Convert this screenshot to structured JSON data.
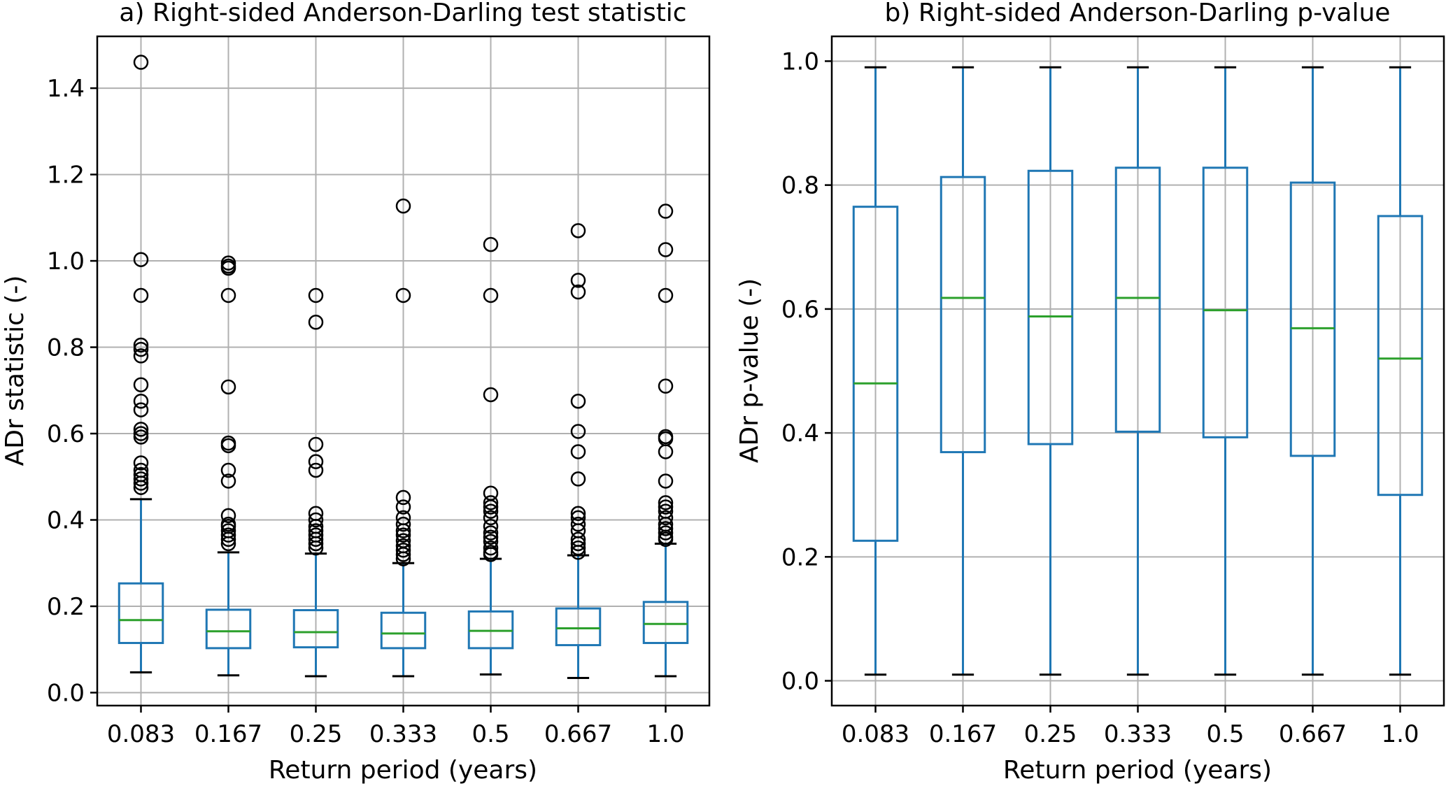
{
  "chart_data": [
    {
      "type": "box",
      "title": "a) Right-sided Anderson-Darling test statistic",
      "xlabel": "Return period (years)",
      "ylabel": "ADr statistic (-)",
      "ylim": [
        -0.03,
        1.52
      ],
      "yticks": [
        "0.0",
        "0.2",
        "0.4",
        "0.6",
        "0.8",
        "1.0",
        "1.2",
        "1.4"
      ],
      "grid": true,
      "colors": {
        "box": "#1f77b4",
        "median": "#2ca02c",
        "whisker_cap": "#000000",
        "outlier": "#000000"
      },
      "categories": [
        "0.083",
        "0.167",
        "0.25",
        "0.333",
        "0.5",
        "0.667",
        "1.0"
      ],
      "boxes": [
        {
          "whisker_low": 0.047,
          "q1": 0.115,
          "median": 0.168,
          "q3": 0.253,
          "whisker_high": 0.448,
          "outliers": [
            1.46,
            1.003,
            0.92,
            0.805,
            0.795,
            0.78,
            0.713,
            0.675,
            0.655,
            0.61,
            0.6,
            0.592,
            0.532,
            0.515,
            0.505,
            0.495,
            0.485,
            0.475
          ]
        },
        {
          "whisker_low": 0.04,
          "q1": 0.103,
          "median": 0.142,
          "q3": 0.192,
          "whisker_high": 0.325,
          "outliers": [
            0.995,
            0.988,
            0.983,
            0.92,
            0.708,
            0.578,
            0.572,
            0.515,
            0.49,
            0.41,
            0.39,
            0.385,
            0.375,
            0.365,
            0.355,
            0.345
          ]
        },
        {
          "whisker_low": 0.038,
          "q1": 0.105,
          "median": 0.14,
          "q3": 0.191,
          "whisker_high": 0.322,
          "outliers": [
            0.92,
            0.858,
            0.575,
            0.535,
            0.515,
            0.415,
            0.4,
            0.385,
            0.375,
            0.365,
            0.355,
            0.345,
            0.335
          ]
        },
        {
          "whisker_low": 0.038,
          "q1": 0.103,
          "median": 0.137,
          "q3": 0.185,
          "whisker_high": 0.3,
          "outliers": [
            1.127,
            0.92,
            0.452,
            0.43,
            0.405,
            0.39,
            0.375,
            0.365,
            0.352,
            0.34,
            0.33,
            0.32,
            0.31
          ]
        },
        {
          "whisker_low": 0.042,
          "q1": 0.103,
          "median": 0.143,
          "q3": 0.188,
          "whisker_high": 0.31,
          "outliers": [
            1.038,
            0.92,
            0.69,
            0.462,
            0.44,
            0.43,
            0.42,
            0.405,
            0.385,
            0.37,
            0.36,
            0.35,
            0.335,
            0.325,
            0.32
          ]
        },
        {
          "whisker_low": 0.034,
          "q1": 0.11,
          "median": 0.149,
          "q3": 0.195,
          "whisker_high": 0.318,
          "outliers": [
            1.07,
            0.955,
            0.928,
            0.675,
            0.605,
            0.558,
            0.495,
            0.415,
            0.405,
            0.39,
            0.375,
            0.355,
            0.345,
            0.335,
            0.325
          ]
        },
        {
          "whisker_low": 0.038,
          "q1": 0.115,
          "median": 0.159,
          "q3": 0.21,
          "whisker_high": 0.345,
          "outliers": [
            1.115,
            1.026,
            0.92,
            0.71,
            0.593,
            0.588,
            0.558,
            0.49,
            0.44,
            0.43,
            0.42,
            0.405,
            0.39,
            0.38,
            0.37,
            0.36,
            0.355
          ]
        }
      ]
    },
    {
      "type": "box",
      "title": "b) Right-sided Anderson-Darling p-value",
      "xlabel": "Return period (years)",
      "ylabel": "ADr p-value (-)",
      "ylim": [
        -0.04,
        1.04
      ],
      "yticks": [
        "0.0",
        "0.2",
        "0.4",
        "0.6",
        "0.8",
        "1.0"
      ],
      "grid": true,
      "colors": {
        "box": "#1f77b4",
        "median": "#2ca02c",
        "whisker_cap": "#000000",
        "outlier": "#000000"
      },
      "categories": [
        "0.083",
        "0.167",
        "0.25",
        "0.333",
        "0.5",
        "0.667",
        "1.0"
      ],
      "boxes": [
        {
          "whisker_low": 0.01,
          "q1": 0.226,
          "median": 0.48,
          "q3": 0.765,
          "whisker_high": 0.99,
          "outliers": []
        },
        {
          "whisker_low": 0.01,
          "q1": 0.369,
          "median": 0.618,
          "q3": 0.813,
          "whisker_high": 0.99,
          "outliers": []
        },
        {
          "whisker_low": 0.01,
          "q1": 0.382,
          "median": 0.588,
          "q3": 0.823,
          "whisker_high": 0.99,
          "outliers": []
        },
        {
          "whisker_low": 0.01,
          "q1": 0.402,
          "median": 0.618,
          "q3": 0.828,
          "whisker_high": 0.99,
          "outliers": []
        },
        {
          "whisker_low": 0.01,
          "q1": 0.393,
          "median": 0.598,
          "q3": 0.828,
          "whisker_high": 0.99,
          "outliers": []
        },
        {
          "whisker_low": 0.01,
          "q1": 0.363,
          "median": 0.569,
          "q3": 0.804,
          "whisker_high": 0.99,
          "outliers": []
        },
        {
          "whisker_low": 0.01,
          "q1": 0.3,
          "median": 0.52,
          "q3": 0.75,
          "whisker_high": 0.99,
          "outliers": []
        }
      ]
    }
  ]
}
